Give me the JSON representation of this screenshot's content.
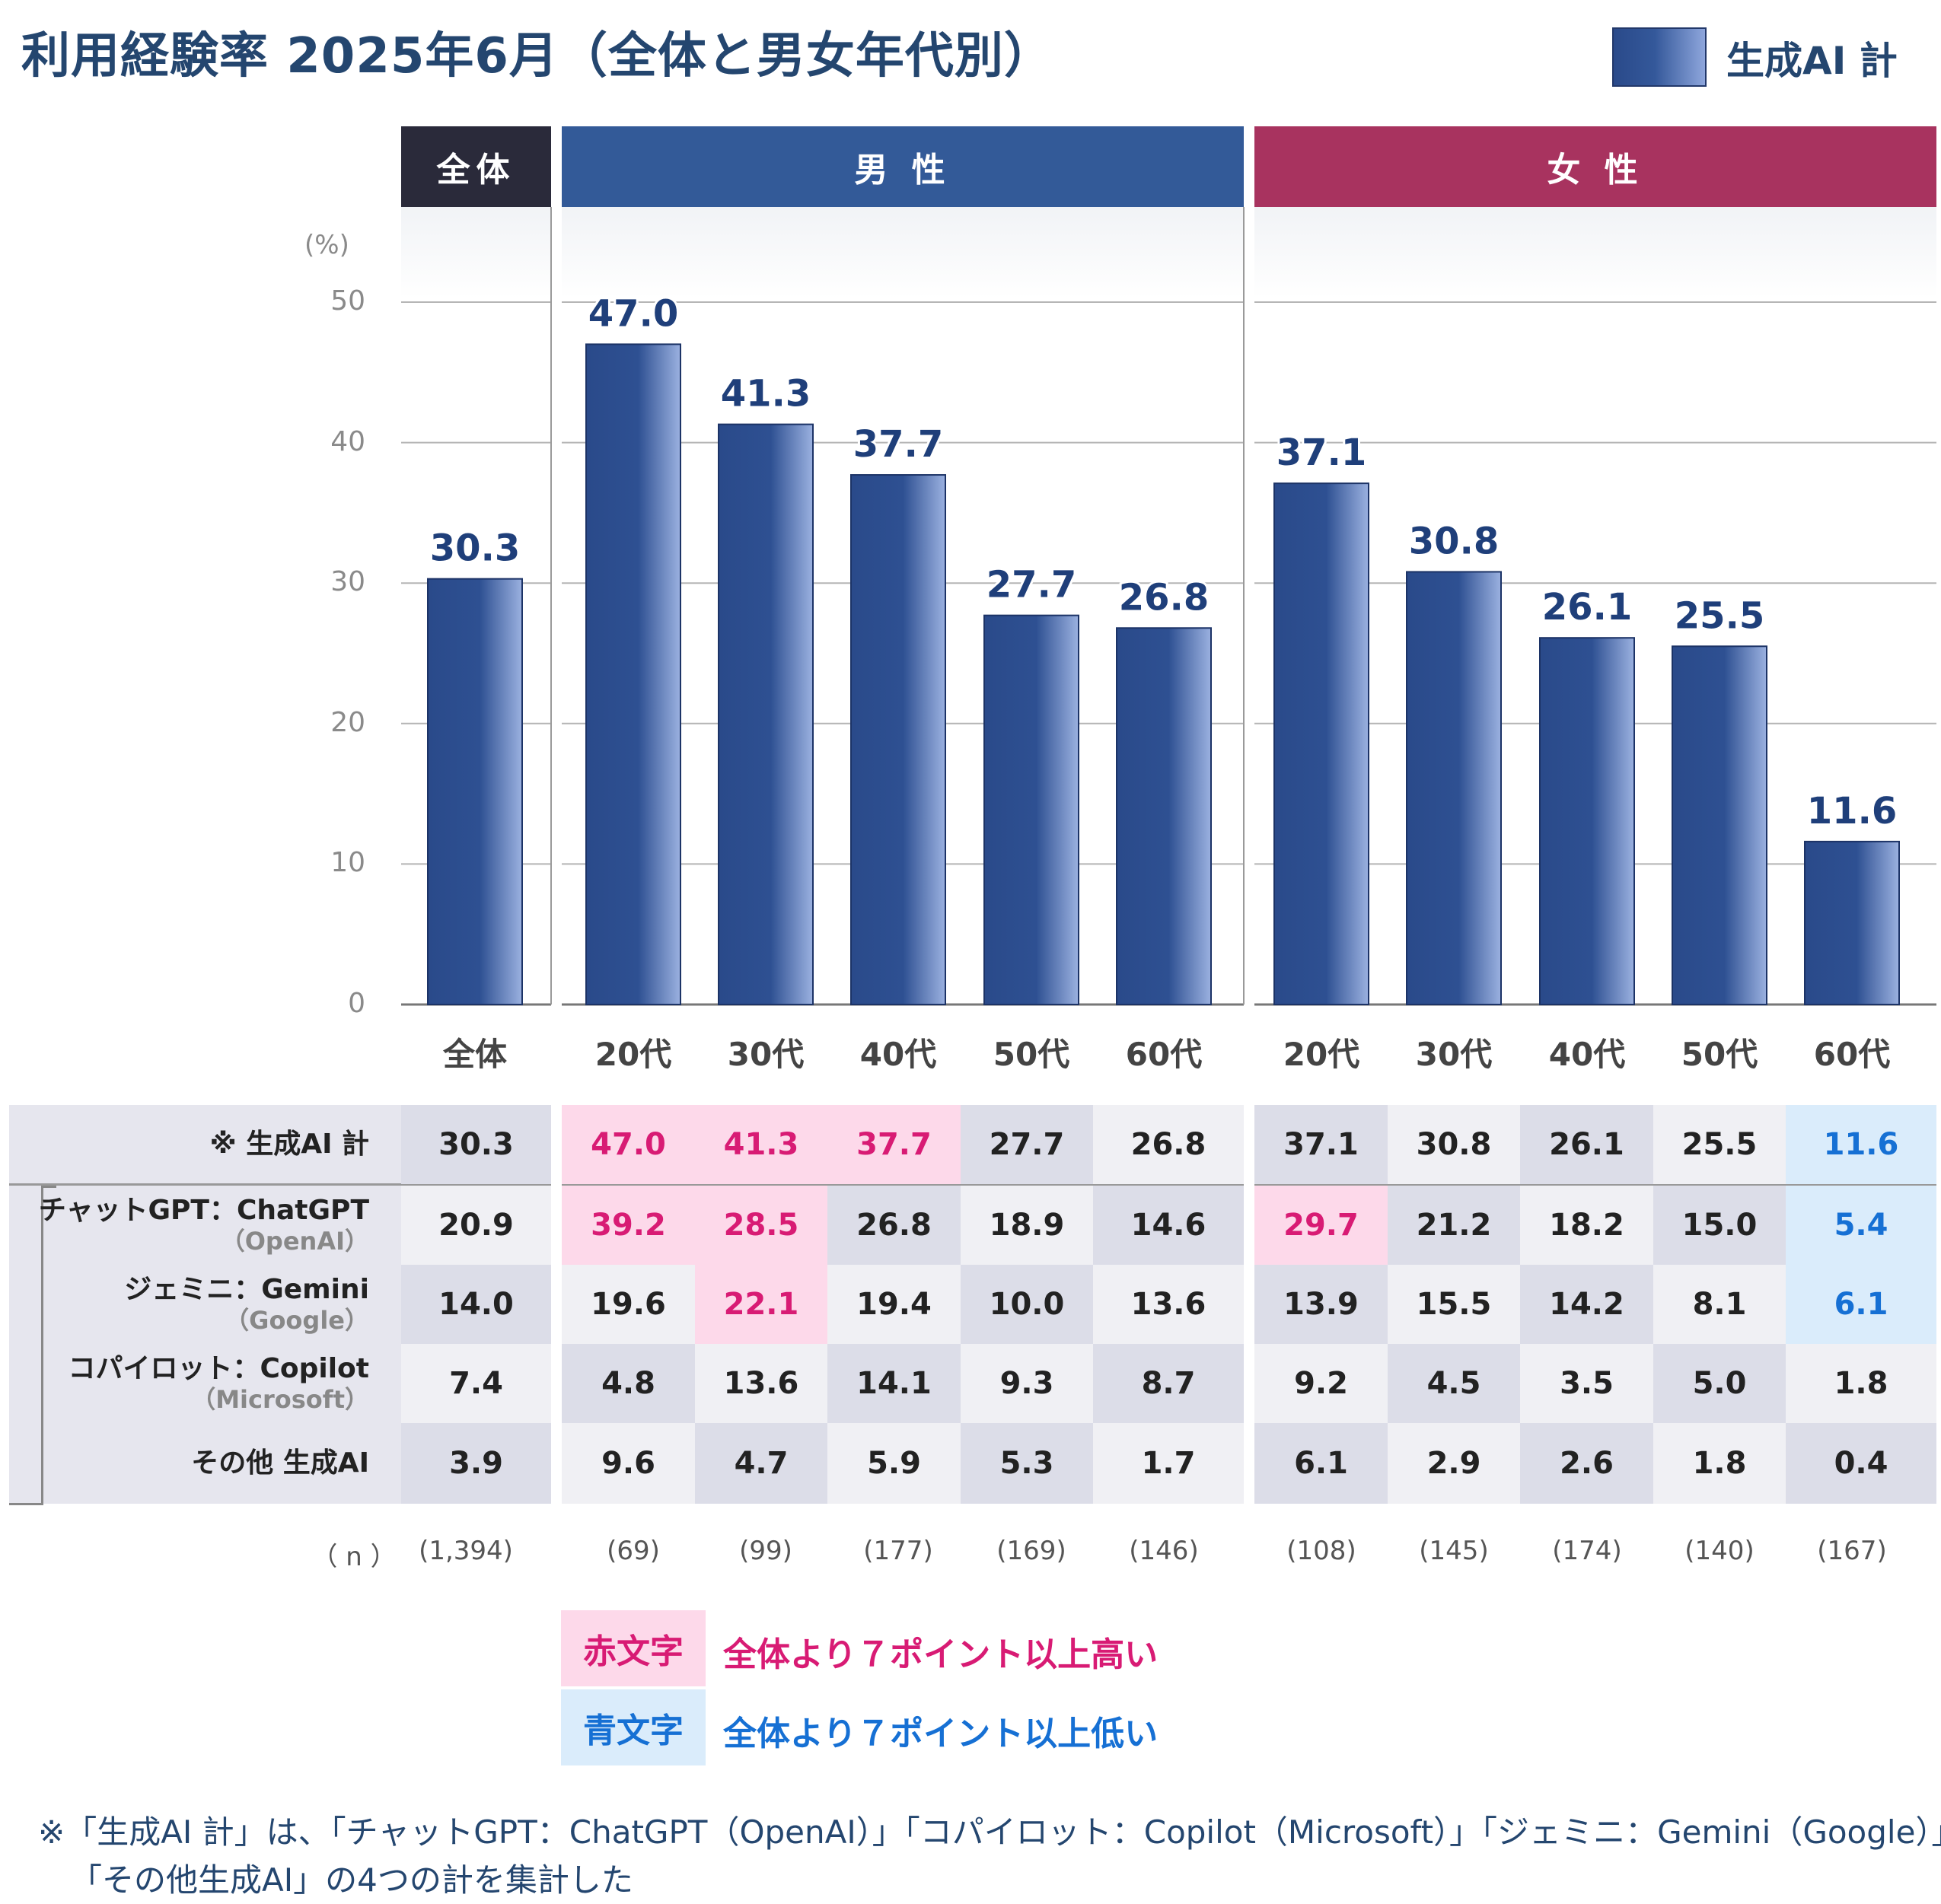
{
  "title": "利用経験率 2025年6月（全体と男女年代別）",
  "legend": {
    "label": "生成AI 計"
  },
  "groups": {
    "all": "全体",
    "male": "男 性",
    "female": "女 性"
  },
  "colors": {
    "all_header": "#2a2a3a",
    "male_header": "#335a98",
    "female_header": "#a8335f",
    "bar_dark": "#2a4a8a",
    "bar_light": "#9bb1e0",
    "label_color": "#1f3f7a",
    "highlight_high": "#fdd9ea",
    "highlight_low": "#daecfb",
    "text_high": "#d81b74",
    "text_low": "#1670d4"
  },
  "chart_data": {
    "type": "bar",
    "title": "利用経験率 2025年6月（全体と男女年代別）",
    "ylabel": "(%)",
    "ylim": [
      0,
      50
    ],
    "yticks": [
      "0",
      "10",
      "20",
      "30",
      "40",
      "50"
    ],
    "categories": [
      "全体",
      "20代",
      "30代",
      "40代",
      "50代",
      "60代",
      "20代",
      "30代",
      "40代",
      "50代",
      "60代"
    ],
    "series": [
      {
        "name": "生成AI 計",
        "values": [
          30.3,
          47.0,
          41.3,
          37.7,
          27.7,
          26.8,
          37.1,
          30.8,
          26.1,
          25.5,
          11.6
        ],
        "labels": [
          "30.3",
          "47.0",
          "41.3",
          "37.7",
          "27.7",
          "26.8",
          "37.1",
          "30.8",
          "26.1",
          "25.5",
          "11.6"
        ]
      }
    ]
  },
  "table": {
    "rows": [
      {
        "label": "※ 生成AI 計",
        "sub": "",
        "values": [
          "30.3",
          "47.0",
          "41.3",
          "37.7",
          "27.7",
          "26.8",
          "37.1",
          "30.8",
          "26.1",
          "25.5",
          "11.6"
        ],
        "flags": [
          "",
          "h",
          "h",
          "h",
          "",
          "",
          "",
          "",
          "",
          "",
          "l"
        ]
      },
      {
        "label": "チャットGPT：ChatGPT",
        "sub": "（OpenAI）",
        "values": [
          "20.9",
          "39.2",
          "28.5",
          "26.8",
          "18.9",
          "14.6",
          "29.7",
          "21.2",
          "18.2",
          "15.0",
          "5.4"
        ],
        "flags": [
          "",
          "h",
          "h",
          "",
          "",
          "",
          "h",
          "",
          "",
          "",
          "l"
        ]
      },
      {
        "label": "ジェミニ：Gemini",
        "sub": "（Google）",
        "values": [
          "14.0",
          "19.6",
          "22.1",
          "19.4",
          "10.0",
          "13.6",
          "13.9",
          "15.5",
          "14.2",
          "8.1",
          "6.1"
        ],
        "flags": [
          "",
          "",
          "h",
          "",
          "",
          "",
          "",
          "",
          "",
          "",
          "l"
        ]
      },
      {
        "label": "コパイロット：Copilot",
        "sub": "（Microsoft）",
        "values": [
          "7.4",
          "4.8",
          "13.6",
          "14.1",
          "9.3",
          "8.7",
          "9.2",
          "4.5",
          "3.5",
          "5.0",
          "1.8"
        ],
        "flags": [
          "",
          "",
          "",
          "",
          "",
          "",
          "",
          "",
          "",
          "",
          ""
        ]
      },
      {
        "label": "その他 生成AI",
        "sub": "",
        "values": [
          "3.9",
          "9.6",
          "4.7",
          "5.9",
          "5.3",
          "1.7",
          "6.1",
          "2.9",
          "2.6",
          "1.8",
          "0.4"
        ],
        "flags": [
          "",
          "",
          "",
          "",
          "",
          "",
          "",
          "",
          "",
          "",
          ""
        ]
      }
    ],
    "n_label": "（ n ）",
    "n_values": [
      "(1,394)",
      "(69)",
      "(99)",
      "(177)",
      "(169)",
      "(146)",
      "(108)",
      "(145)",
      "(174)",
      "(140)",
      "(167)"
    ]
  },
  "legend_notes": {
    "high_box": "赤文字",
    "high_text": "全体より７ポイント以上高い",
    "low_box": "青文字",
    "low_text": "全体より７ポイント以上低い"
  },
  "footnote": {
    "line1": "※「生成AI 計」は、「チャットGPT：ChatGPT（OpenAI）」「コパイロット：Copilot（Microsoft）」「ジェミニ：Gemini（Google）」",
    "line2": "「その他生成AI」の4つの計を集計した"
  }
}
